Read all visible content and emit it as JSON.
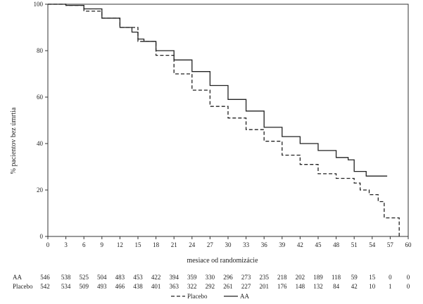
{
  "chart_data": {
    "type": "line",
    "title": "",
    "xlabel": "mesiace od randomizácie",
    "ylabel": "% pacientov bez úmrtia",
    "xlim": [
      0,
      60
    ],
    "ylim": [
      0,
      100
    ],
    "x_ticks": [
      0,
      3,
      6,
      9,
      12,
      15,
      18,
      21,
      24,
      27,
      30,
      33,
      36,
      39,
      42,
      45,
      48,
      51,
      54,
      57,
      60
    ],
    "y_ticks": [
      0,
      20,
      40,
      60,
      80,
      100
    ],
    "grid": false,
    "legend_position": "bottom",
    "series": [
      {
        "name": "AA",
        "style": "solid",
        "points": [
          [
            0,
            100
          ],
          [
            2,
            100
          ],
          [
            3,
            99.5
          ],
          [
            6,
            98
          ],
          [
            9,
            94
          ],
          [
            12,
            90
          ],
          [
            14,
            88
          ],
          [
            15,
            85
          ],
          [
            16,
            84
          ],
          [
            18,
            80
          ],
          [
            21,
            76
          ],
          [
            24,
            71
          ],
          [
            27,
            65
          ],
          [
            30,
            59
          ],
          [
            33,
            54
          ],
          [
            36,
            47
          ],
          [
            39,
            43
          ],
          [
            42,
            40
          ],
          [
            45,
            37
          ],
          [
            48,
            34
          ],
          [
            50,
            33
          ],
          [
            51,
            28
          ],
          [
            53,
            28
          ],
          [
            53,
            26
          ],
          [
            56.5,
            26
          ]
        ]
      },
      {
        "name": "Placebo",
        "style": "dashed",
        "points": [
          [
            0,
            100
          ],
          [
            2,
            100
          ],
          [
            3,
            99.5
          ],
          [
            6,
            97
          ],
          [
            9,
            94
          ],
          [
            12,
            90
          ],
          [
            15,
            84
          ],
          [
            18,
            78
          ],
          [
            21,
            70
          ],
          [
            24,
            63
          ],
          [
            27,
            56
          ],
          [
            30,
            51
          ],
          [
            33,
            46
          ],
          [
            36,
            41
          ],
          [
            39,
            35
          ],
          [
            42,
            31
          ],
          [
            45,
            27
          ],
          [
            48,
            25
          ],
          [
            51,
            23
          ],
          [
            52,
            20
          ],
          [
            53,
            20
          ],
          [
            53.5,
            18
          ],
          [
            54,
            18
          ],
          [
            55,
            15
          ],
          [
            56,
            15
          ],
          [
            56,
            8
          ],
          [
            58,
            8
          ],
          [
            58.5,
            0
          ]
        ]
      }
    ],
    "risk_table": {
      "rows": [
        {
          "label": "AA",
          "values": [
            "546",
            "538",
            "525",
            "504",
            "483",
            "453",
            "422",
            "394",
            "359",
            "330",
            "296",
            "273",
            "235",
            "218",
            "202",
            "189",
            "118",
            "59",
            "15",
            "0",
            "0"
          ]
        },
        {
          "label": "Placebo",
          "values": [
            "542",
            "534",
            "509",
            "493",
            "466",
            "438",
            "401",
            "363",
            "322",
            "292",
            "261",
            "227",
            "201",
            "176",
            "148",
            "132",
            "84",
            "42",
            "10",
            "1",
            "0"
          ]
        }
      ]
    },
    "legend": [
      {
        "name": "Placebo",
        "style": "dashed"
      },
      {
        "name": "AA",
        "style": "solid"
      }
    ]
  }
}
